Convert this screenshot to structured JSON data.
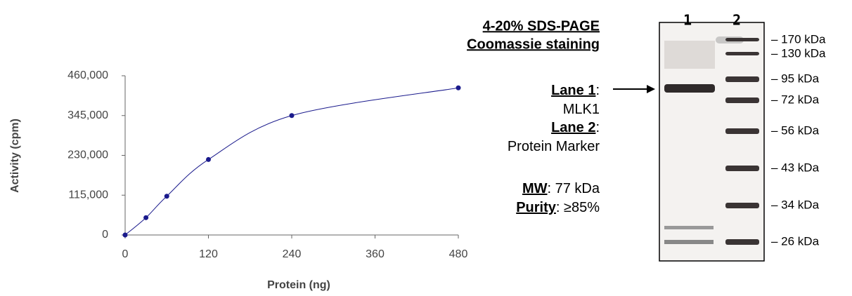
{
  "chart_data": {
    "type": "line",
    "x_label": "Protein (ng)",
    "y_label": "Activity (cpm)",
    "x": [
      0,
      30,
      60,
      120,
      240,
      480
    ],
    "series": [
      {
        "color": "#1a1a8c",
        "values": [
          0,
          50000,
          112000,
          218000,
          345000,
          425000
        ]
      }
    ],
    "xlim": [
      0,
      480
    ],
    "xticks": [
      0,
      120,
      240,
      360,
      480
    ],
    "ylim": [
      0,
      460000
    ],
    "yticks": [
      0,
      {
        "value": 115000,
        "label": "115,000"
      },
      {
        "value": 230000,
        "label": "230,000"
      },
      {
        "value": 345000,
        "label": "345,000"
      },
      {
        "value": 460000,
        "label": "460,000"
      }
    ]
  },
  "gel": {
    "title": [
      "4-20% SDS-PAGE",
      "Coomassie staining"
    ],
    "info": [
      {
        "label": "Lane 1",
        "rest": ":"
      },
      {
        "text": "MLK1"
      },
      {
        "label": "Lane 2",
        "rest": ":"
      },
      {
        "text": "Protein Marker"
      },
      {
        "label": "MW",
        "rest": ": 77 kDa"
      },
      {
        "label": "Purity",
        "rest": ": ≥85%"
      }
    ],
    "lanes": [
      "1",
      "2"
    ],
    "markers": [
      "– 170 kDa",
      "– 130 kDa",
      "– 95 kDa",
      "– 72 kDa",
      "– 56 kDa",
      "– 43 kDa",
      "– 34 kDa",
      "– 26 kDa"
    ]
  }
}
